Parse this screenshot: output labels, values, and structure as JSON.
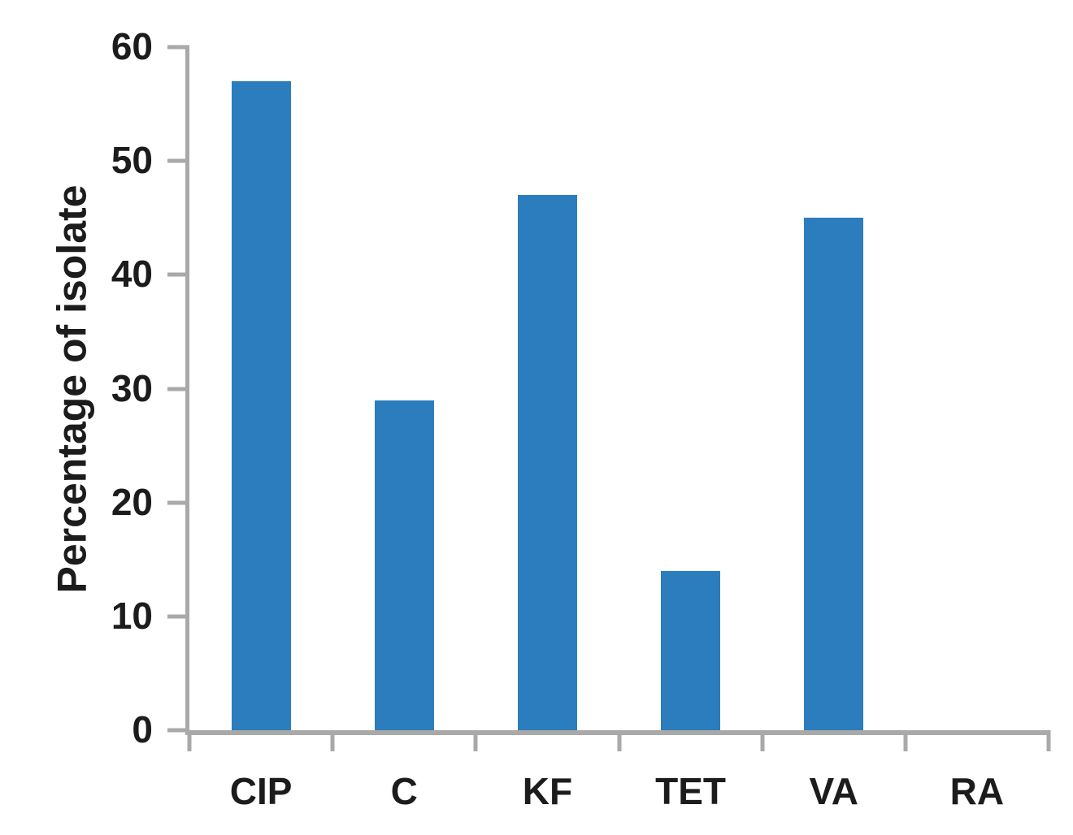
{
  "chart_data": {
    "type": "bar",
    "title": "",
    "xlabel": "",
    "ylabel": "Percentage of isolate",
    "categories": [
      "CIP",
      "C",
      "KF",
      "TET",
      "VA",
      "RA"
    ],
    "values": [
      57,
      29,
      47,
      14,
      45,
      0
    ],
    "ylim": [
      0,
      60
    ],
    "yticks": [
      0,
      10,
      20,
      30,
      40,
      50,
      60
    ],
    "grid": false,
    "legend": null,
    "colors": {
      "bar": "#2b7dbd",
      "axis": "#a9a9a9",
      "text": "#1c1c1c"
    }
  }
}
